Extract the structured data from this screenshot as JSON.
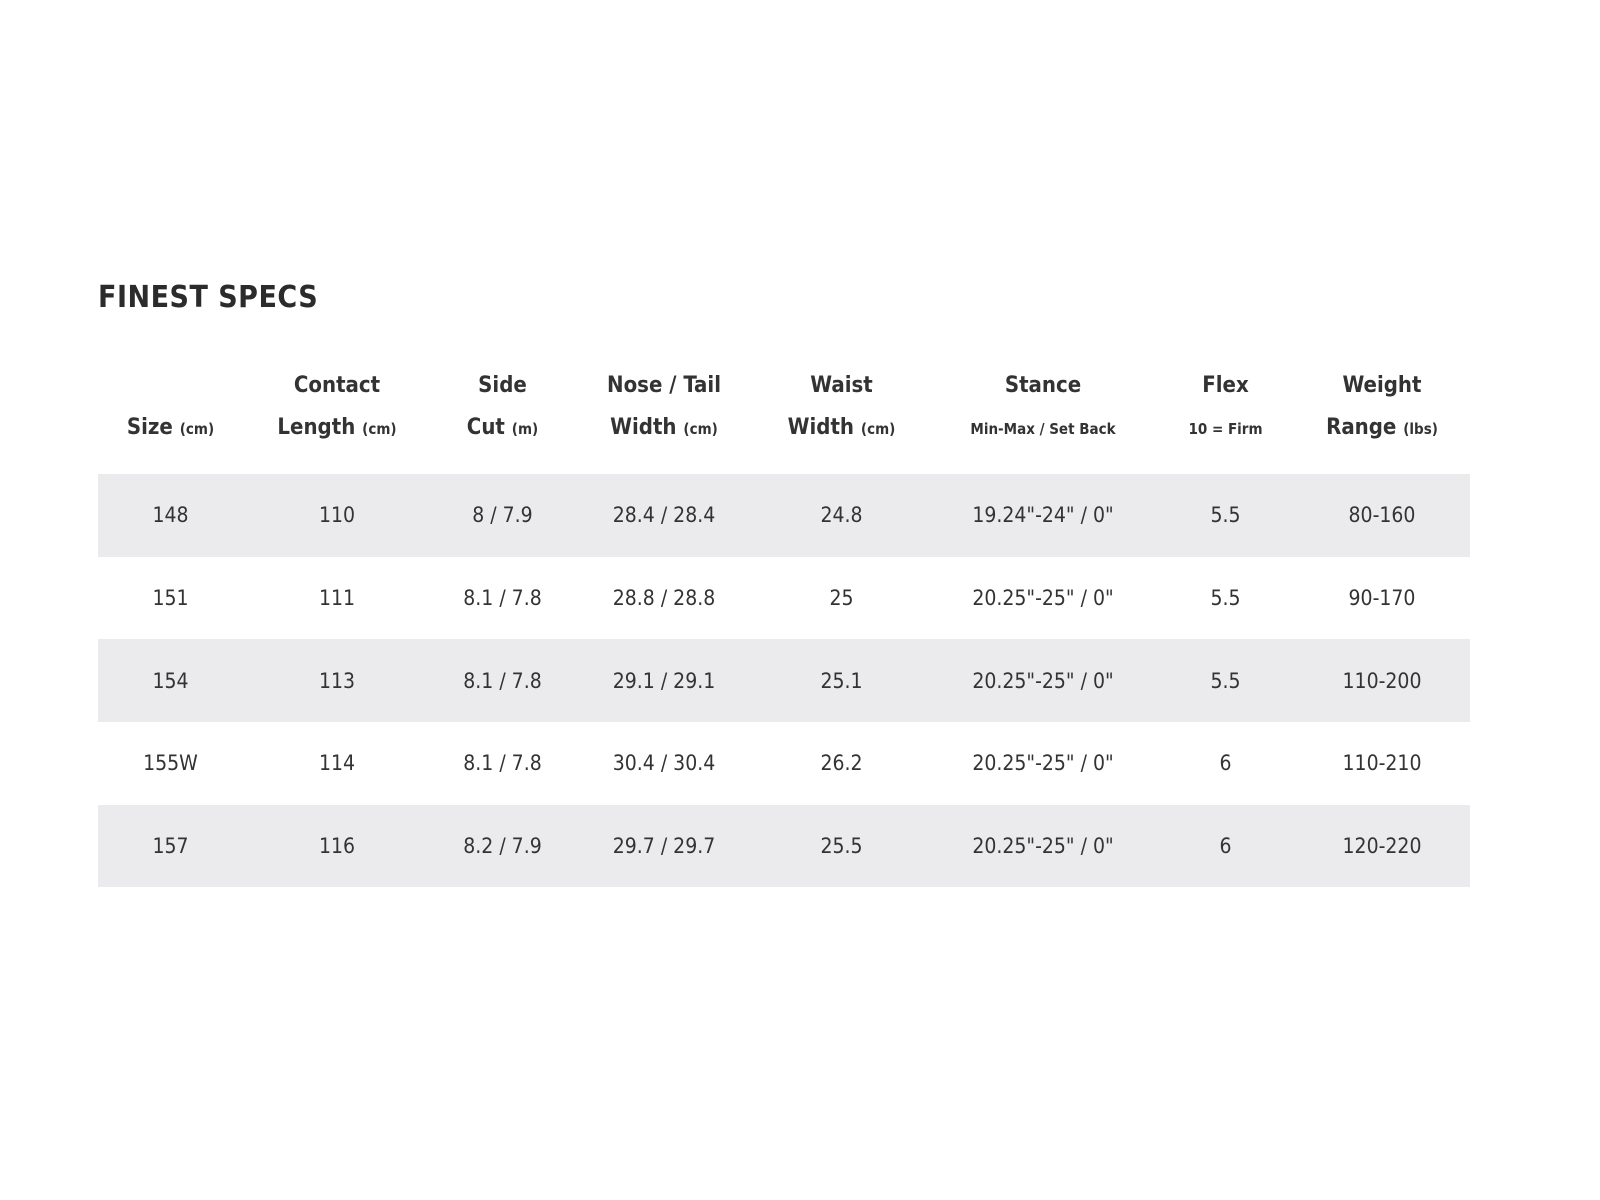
{
  "title": "FINEST SPECS",
  "columns": [
    {
      "line1": "",
      "line2": "Size",
      "unit": "(cm)"
    },
    {
      "line1": "Contact",
      "line2": "Length",
      "unit": "(cm)"
    },
    {
      "line1": "Side",
      "line2": "Cut",
      "unit": "(m)"
    },
    {
      "line1": "Nose / Tail",
      "line2": "Width",
      "unit": "(cm)"
    },
    {
      "line1": "Waist",
      "line2": "Width",
      "unit": "(cm)"
    },
    {
      "line1": "Stance",
      "line2": "",
      "unit": "Min-Max / Set Back"
    },
    {
      "line1": "Flex",
      "line2": "",
      "unit": "10 = Firm"
    },
    {
      "line1": "Weight",
      "line2": "Range",
      "unit": "(lbs)"
    }
  ],
  "rows": [
    [
      "148",
      "110",
      "8 / 7.9",
      "28.4 / 28.4",
      "24.8",
      "19.24\"-24\" / 0\"",
      "5.5",
      "80-160"
    ],
    [
      "151",
      "111",
      "8.1 / 7.8",
      "28.8 / 28.8",
      "25",
      "20.25\"-25\" / 0\"",
      "5.5",
      "90-170"
    ],
    [
      "154",
      "113",
      "8.1 / 7.8",
      "29.1 / 29.1",
      "25.1",
      "20.25\"-25\" / 0\"",
      "5.5",
      "110-200"
    ],
    [
      "155W",
      "114",
      "8.1 / 7.8",
      "30.4 / 30.4",
      "26.2",
      "20.25\"-25\" / 0\"",
      "6",
      "110-210"
    ],
    [
      "157",
      "116",
      "8.2 / 7.9",
      "29.7 / 29.7",
      "25.5",
      "20.25\"-25\" / 0\"",
      "6",
      "120-220"
    ]
  ],
  "colors": {
    "stripe": "#ebebed",
    "text": "#333333"
  }
}
